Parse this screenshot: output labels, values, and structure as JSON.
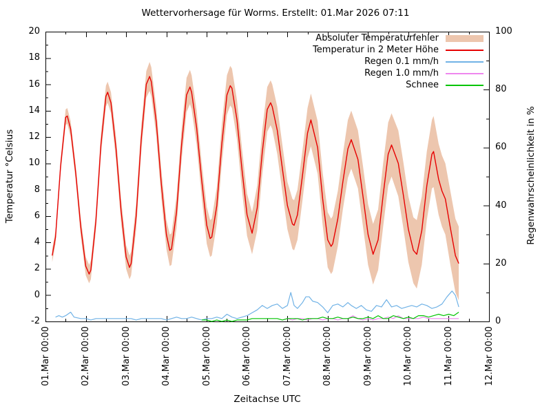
{
  "chart_data": {
    "type": "line",
    "title": "Wettervorhersage für Worms. Erstellt: 01.Mar 2026 07:11",
    "x_axis": {
      "label": "Zeitachse UTC",
      "tick_labels": [
        "01.Mar 00:00",
        "02.Mar 00:00",
        "03.Mar 00:00",
        "04.Mar 00:00",
        "05.Mar 00:00",
        "06.Mar 00:00",
        "07.Mar 00:00",
        "08.Mar 00:00",
        "09.Mar 00:00",
        "10.Mar 00:00",
        "11.Mar 00:00",
        "12.Mar 00:00"
      ],
      "tick_hours_step": 24,
      "minor_tick_hours_step": 12,
      "range_hours": [
        0,
        264
      ]
    },
    "y_left_axis": {
      "label": "Temperatur °Celsius",
      "range": [
        -2,
        20
      ],
      "ticks": [
        -2,
        0,
        2,
        4,
        6,
        8,
        10,
        12,
        14,
        16,
        18,
        20
      ],
      "minor_step": 1
    },
    "y_right_axis": {
      "label": "Regenwahrscheinlichkeit in %",
      "range": [
        0,
        100
      ],
      "ticks": [
        0,
        20,
        40,
        60,
        80,
        100
      ],
      "minor_step": 10
    },
    "grid": "off",
    "legend_position": "top-right-inside",
    "legend": [
      {
        "label": "Absoluter Temperaturfehler",
        "color": "#edc6ae",
        "key": "band"
      },
      {
        "label": "Temperatur in 2 Meter Höhe",
        "color": "#e60000",
        "key": "line"
      },
      {
        "label": "Regen 0.1 mm/h",
        "color": "#70b2e6",
        "key": "line"
      },
      {
        "label": "Regen 1.0 mm/h",
        "color": "#ee86ee",
        "key": "line"
      },
      {
        "label": "Schnee",
        "color": "#00c400",
        "key": "line"
      }
    ],
    "series": [
      {
        "name": "Temperatur in 2 Meter Höhe",
        "axis": "left",
        "unit": "°C",
        "color": "#e60000",
        "band_name": "Absoluter Temperaturfehler",
        "band_color": "#edc6ae",
        "points_hour_value_error": [
          [
            4,
            3.0,
            0.5
          ],
          [
            6,
            4.4,
            0.5
          ],
          [
            9,
            9.8,
            0.5
          ],
          [
            12,
            13.5,
            0.6
          ],
          [
            13,
            13.6,
            0.6
          ],
          [
            15,
            12.6,
            0.6
          ],
          [
            18,
            9.3,
            0.6
          ],
          [
            21,
            5.2,
            0.7
          ],
          [
            24,
            2.2,
            0.7
          ],
          [
            26,
            1.6,
            0.7
          ],
          [
            27,
            1.9,
            0.7
          ],
          [
            30,
            5.6,
            0.7
          ],
          [
            33,
            11.4,
            0.8
          ],
          [
            36,
            15.1,
            0.8
          ],
          [
            37,
            15.4,
            0.8
          ],
          [
            39,
            14.6,
            0.8
          ],
          [
            42,
            11.1,
            0.9
          ],
          [
            45,
            6.4,
            0.9
          ],
          [
            48,
            2.9,
            0.9
          ],
          [
            50,
            2.1,
            0.9
          ],
          [
            51,
            2.4,
            0.9
          ],
          [
            54,
            6.0,
            1.0
          ],
          [
            57,
            11.8,
            1.0
          ],
          [
            60,
            16.0,
            1.0
          ],
          [
            62,
            16.6,
            1.1
          ],
          [
            63,
            16.2,
            1.1
          ],
          [
            66,
            13.1,
            1.1
          ],
          [
            69,
            8.4,
            1.1
          ],
          [
            72,
            4.6,
            1.1
          ],
          [
            74,
            3.4,
            1.2
          ],
          [
            75,
            3.5,
            1.2
          ],
          [
            78,
            6.3,
            1.2
          ],
          [
            81,
            11.4,
            1.2
          ],
          [
            84,
            15.2,
            1.3
          ],
          [
            86,
            15.8,
            1.3
          ],
          [
            87,
            15.4,
            1.3
          ],
          [
            90,
            12.7,
            1.3
          ],
          [
            93,
            8.7,
            1.3
          ],
          [
            96,
            5.3,
            1.4
          ],
          [
            98,
            4.3,
            1.4
          ],
          [
            99,
            4.4,
            1.4
          ],
          [
            102,
            6.8,
            1.4
          ],
          [
            105,
            11.5,
            1.5
          ],
          [
            108,
            15.2,
            1.5
          ],
          [
            110,
            15.9,
            1.5
          ],
          [
            111,
            15.7,
            1.5
          ],
          [
            114,
            13.3,
            1.5
          ],
          [
            117,
            9.5,
            1.6
          ],
          [
            120,
            6.1,
            1.6
          ],
          [
            123,
            4.7,
            1.6
          ],
          [
            126,
            6.6,
            1.7
          ],
          [
            129,
            10.8,
            1.7
          ],
          [
            132,
            14.1,
            1.7
          ],
          [
            134,
            14.6,
            1.7
          ],
          [
            135,
            14.3,
            1.7
          ],
          [
            138,
            12.5,
            1.8
          ],
          [
            141,
            9.6,
            1.8
          ],
          [
            144,
            6.8,
            1.8
          ],
          [
            147,
            5.4,
            1.9
          ],
          [
            148,
            5.3,
            1.9
          ],
          [
            150,
            6.1,
            1.9
          ],
          [
            153,
            9.1,
            1.9
          ],
          [
            156,
            12.3,
            1.9
          ],
          [
            158,
            13.3,
            2.0
          ],
          [
            162,
            11.2,
            2.0
          ],
          [
            165,
            7.3,
            2.0
          ],
          [
            168,
            4.2,
            2.1
          ],
          [
            170,
            3.7,
            2.1
          ],
          [
            171,
            3.9,
            2.1
          ],
          [
            174,
            5.8,
            2.1
          ],
          [
            177,
            8.6,
            2.1
          ],
          [
            180,
            11.1,
            2.2
          ],
          [
            182,
            11.8,
            2.2
          ],
          [
            186,
            10.3,
            2.2
          ],
          [
            189,
            7.5,
            2.3
          ],
          [
            192,
            4.6,
            2.3
          ],
          [
            195,
            3.1,
            2.3
          ],
          [
            198,
            4.2,
            2.3
          ],
          [
            201,
            7.6,
            2.4
          ],
          [
            204,
            10.7,
            2.4
          ],
          [
            206,
            11.4,
            2.4
          ],
          [
            210,
            10.0,
            2.5
          ],
          [
            213,
            7.6,
            2.5
          ],
          [
            216,
            5.0,
            2.5
          ],
          [
            219,
            3.4,
            2.5
          ],
          [
            221,
            3.1,
            2.6
          ],
          [
            224,
            4.9,
            2.6
          ],
          [
            227,
            8.3,
            2.6
          ],
          [
            230,
            10.7,
            2.6
          ],
          [
            231,
            10.9,
            2.7
          ],
          [
            234,
            8.8,
            2.7
          ],
          [
            236,
            7.9,
            2.7
          ],
          [
            238,
            7.3,
            2.7
          ],
          [
            241,
            5.1,
            2.8
          ],
          [
            244,
            3.0,
            2.8
          ],
          [
            246,
            2.4,
            2.8
          ]
        ]
      },
      {
        "name": "Regen 0.1 mm/h",
        "axis": "right",
        "unit": "%",
        "color": "#70b2e6",
        "points_hour_value": [
          [
            6,
            1.5
          ],
          [
            8,
            2
          ],
          [
            10,
            1.5
          ],
          [
            12,
            2
          ],
          [
            15,
            3.2
          ],
          [
            17,
            1.5
          ],
          [
            21,
            1
          ],
          [
            24,
            1
          ],
          [
            27,
            0.5
          ],
          [
            30,
            1
          ],
          [
            33,
            1
          ],
          [
            36,
            1
          ],
          [
            39,
            1
          ],
          [
            42,
            1
          ],
          [
            45,
            1
          ],
          [
            48,
            1
          ],
          [
            51,
            1
          ],
          [
            54,
            0.5
          ],
          [
            57,
            1
          ],
          [
            60,
            1
          ],
          [
            63,
            1
          ],
          [
            66,
            1
          ],
          [
            69,
            1
          ],
          [
            72,
            0.5
          ],
          [
            75,
            1
          ],
          [
            78,
            1.5
          ],
          [
            81,
            1
          ],
          [
            84,
            1
          ],
          [
            87,
            1.5
          ],
          [
            90,
            1
          ],
          [
            93,
            0.5
          ],
          [
            96,
            1
          ],
          [
            99,
            1
          ],
          [
            102,
            1.5
          ],
          [
            105,
            1
          ],
          [
            108,
            2.5
          ],
          [
            111,
            1.5
          ],
          [
            114,
            1
          ],
          [
            117,
            1.5
          ],
          [
            120,
            2
          ],
          [
            123,
            3
          ],
          [
            126,
            4
          ],
          [
            129,
            5.5
          ],
          [
            132,
            4.5
          ],
          [
            135,
            5.5
          ],
          [
            138,
            6
          ],
          [
            141,
            4.5
          ],
          [
            144,
            5.5
          ],
          [
            146,
            10
          ],
          [
            148,
            5.5
          ],
          [
            150,
            4.5
          ],
          [
            153,
            6.5
          ],
          [
            155,
            8.5
          ],
          [
            157,
            8.5
          ],
          [
            159,
            7
          ],
          [
            162,
            6.5
          ],
          [
            165,
            5
          ],
          [
            168,
            3
          ],
          [
            171,
            5.5
          ],
          [
            174,
            6
          ],
          [
            177,
            5
          ],
          [
            180,
            6.5
          ],
          [
            182,
            5.5
          ],
          [
            185,
            4.5
          ],
          [
            188,
            5.5
          ],
          [
            191,
            4
          ],
          [
            194,
            3.5
          ],
          [
            197,
            5.5
          ],
          [
            200,
            5
          ],
          [
            203,
            7.5
          ],
          [
            206,
            5
          ],
          [
            209,
            5.5
          ],
          [
            212,
            4.5
          ],
          [
            215,
            5
          ],
          [
            218,
            5.5
          ],
          [
            221,
            5
          ],
          [
            224,
            6
          ],
          [
            227,
            5.5
          ],
          [
            230,
            4.5
          ],
          [
            233,
            5
          ],
          [
            236,
            6
          ],
          [
            239,
            8.5
          ],
          [
            242,
            10.5
          ],
          [
            244,
            9
          ],
          [
            246,
            5
          ]
        ]
      },
      {
        "name": "Regen 1.0 mm/h",
        "axis": "right",
        "unit": "%",
        "color": "#ee86ee",
        "points_hour_value": [
          [
            141,
            0.5
          ],
          [
            144,
            1
          ],
          [
            147,
            0.5
          ],
          [
            150,
            1
          ],
          [
            153,
            1
          ],
          [
            156,
            0.5
          ],
          [
            159,
            1
          ],
          [
            162,
            1
          ],
          [
            165,
            0.5
          ],
          [
            168,
            1
          ],
          [
            171,
            1
          ],
          [
            174,
            0.5
          ],
          [
            177,
            1
          ],
          [
            180,
            1
          ],
          [
            183,
            2
          ],
          [
            186,
            1
          ],
          [
            189,
            0.5
          ],
          [
            192,
            1
          ],
          [
            195,
            0.5
          ],
          [
            198,
            1
          ],
          [
            201,
            1
          ],
          [
            204,
            1.5
          ],
          [
            207,
            1
          ],
          [
            210,
            2
          ],
          [
            213,
            1
          ],
          [
            216,
            1
          ],
          [
            219,
            1
          ],
          [
            222,
            1
          ],
          [
            225,
            1.5
          ],
          [
            228,
            1
          ],
          [
            231,
            1
          ],
          [
            234,
            1
          ],
          [
            237,
            1
          ],
          [
            240,
            1
          ],
          [
            243,
            1
          ],
          [
            246,
            1
          ]
        ]
      },
      {
        "name": "Schnee",
        "axis": "right",
        "unit": "%",
        "color": "#00c400",
        "points_hour_value": [
          [
            93,
            0.5
          ],
          [
            96,
            0.5
          ],
          [
            99,
            0
          ],
          [
            102,
            0.5
          ],
          [
            105,
            0
          ],
          [
            108,
            0.5
          ],
          [
            111,
            0
          ],
          [
            114,
            0.5
          ],
          [
            117,
            0.5
          ],
          [
            120,
            0.5
          ],
          [
            123,
            1
          ],
          [
            126,
            1
          ],
          [
            129,
            1
          ],
          [
            132,
            1
          ],
          [
            135,
            1
          ],
          [
            138,
            1
          ],
          [
            141,
            0.5
          ],
          [
            144,
            1
          ],
          [
            147,
            1
          ],
          [
            150,
            1
          ],
          [
            153,
            0.5
          ],
          [
            156,
            1
          ],
          [
            159,
            1
          ],
          [
            162,
            1
          ],
          [
            165,
            1.5
          ],
          [
            168,
            1
          ],
          [
            171,
            1
          ],
          [
            174,
            1.5
          ],
          [
            177,
            1
          ],
          [
            180,
            1
          ],
          [
            183,
            1.5
          ],
          [
            186,
            1
          ],
          [
            189,
            1
          ],
          [
            192,
            1.5
          ],
          [
            195,
            1
          ],
          [
            198,
            2
          ],
          [
            201,
            1
          ],
          [
            204,
            1
          ],
          [
            207,
            2
          ],
          [
            210,
            1.5
          ],
          [
            213,
            1
          ],
          [
            216,
            1.5
          ],
          [
            219,
            1
          ],
          [
            222,
            2
          ],
          [
            225,
            2
          ],
          [
            228,
            1.5
          ],
          [
            231,
            2
          ],
          [
            234,
            2.5
          ],
          [
            237,
            2
          ],
          [
            240,
            2.5
          ],
          [
            243,
            2
          ],
          [
            246,
            3.2
          ]
        ]
      }
    ]
  }
}
